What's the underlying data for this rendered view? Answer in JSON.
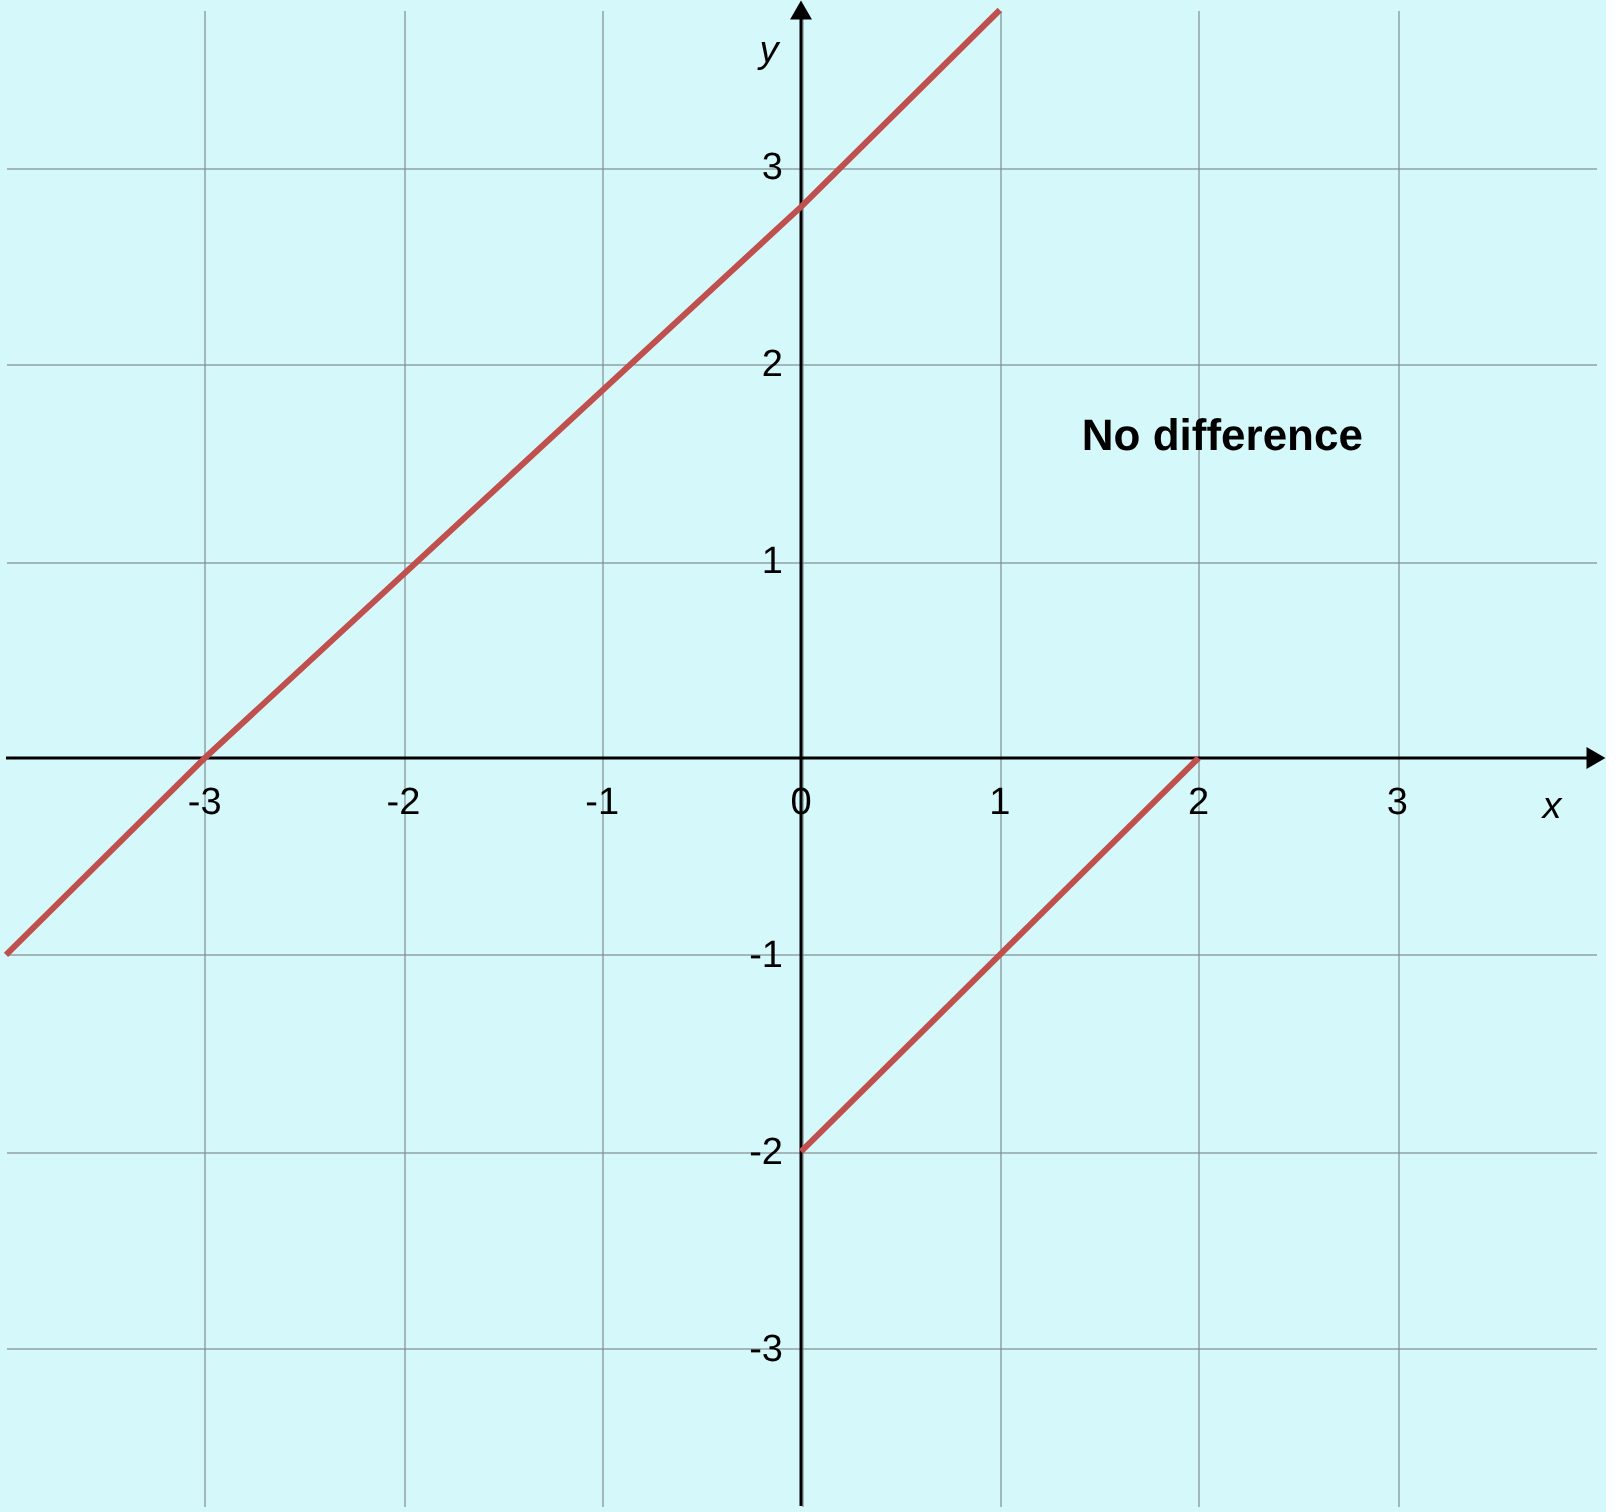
{
  "chart_data": {
    "type": "line",
    "xlabel": "x",
    "ylabel": "y",
    "xlim": [
      -4,
      4
    ],
    "ylim": [
      -3.8,
      3.8
    ],
    "xticks": [
      -3,
      -2,
      -1,
      0,
      1,
      2,
      3
    ],
    "yticks": [
      -3,
      -2,
      -1,
      1,
      2,
      3
    ],
    "grid": true,
    "marker": "none",
    "line_style": "solid",
    "series": [
      {
        "color": "#c0504d",
        "x": [
          -4,
          -3,
          0,
          1
        ],
        "values": [
          -1,
          0,
          2.8,
          3.8
        ]
      },
      {
        "color": "#c0504d",
        "x": [
          0,
          2
        ],
        "values": [
          -2,
          0
        ]
      }
    ],
    "annotations": [
      "No difference"
    ]
  }
}
